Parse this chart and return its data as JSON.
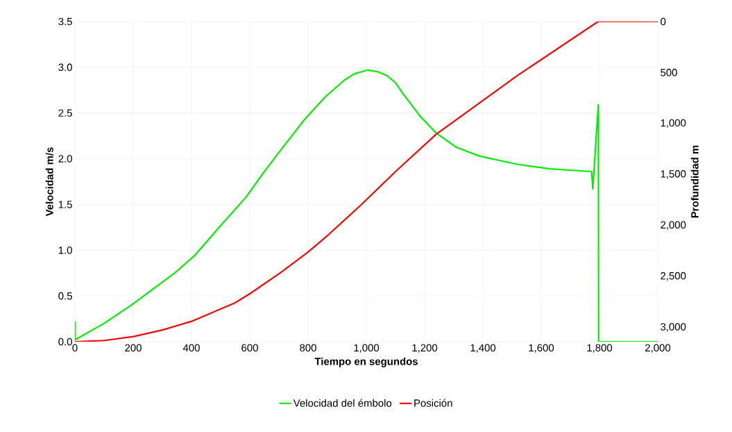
{
  "chart_data": {
    "type": "line",
    "xlabel": "Tiempo en segundos",
    "ylabel": "Velocidad m/s",
    "y2label": "Profundidad m",
    "xlim": [
      0,
      2000
    ],
    "ylim": [
      0,
      3.5
    ],
    "y2lim": [
      3140,
      0
    ],
    "xticks": [
      0,
      200,
      400,
      600,
      800,
      {
        "value": 1000,
        "label": "1,000"
      },
      {
        "value": 1200,
        "label": "1,200"
      },
      {
        "value": 1400,
        "label": "1,400"
      },
      {
        "value": 1600,
        "label": "1,600"
      },
      {
        "value": 1800,
        "label": "1,800"
      },
      {
        "value": 2000,
        "label": "2,000"
      }
    ],
    "yticks": [
      {
        "value": 0,
        "label": "0.0"
      },
      0.5,
      {
        "value": 1,
        "label": "1.0"
      },
      1.5,
      {
        "value": 2,
        "label": "2.0"
      },
      2.5,
      {
        "value": 3,
        "label": "3.0"
      },
      3.5
    ],
    "y2ticks": [
      0,
      500,
      {
        "value": 1000,
        "label": "1,000"
      },
      {
        "value": 1500,
        "label": "1,500"
      },
      {
        "value": 2000,
        "label": "2,000"
      },
      {
        "value": 2500,
        "label": "2,500"
      },
      {
        "value": 3000,
        "label": "3,000"
      }
    ],
    "grid": true,
    "legend": "bottom",
    "series": [
      {
        "name": "Velocidad del émbolo",
        "color": "#00ee00",
        "x": [
          0,
          0,
          100,
          193,
          342,
          410,
          500,
          587,
          643,
          700,
          788,
          860,
          925,
          960,
          1005,
          1040,
          1070,
          1100,
          1126,
          1183,
          1240,
          1306,
          1387,
          1517,
          1631,
          1773,
          1777,
          1796,
          1797,
          2000
        ],
        "values": [
          0.22,
          0.02,
          0.2,
          0.4,
          0.75,
          0.94,
          1.27,
          1.58,
          1.83,
          2.07,
          2.43,
          2.68,
          2.86,
          2.93,
          2.97,
          2.95,
          2.91,
          2.83,
          2.71,
          2.47,
          2.28,
          2.13,
          2.03,
          1.94,
          1.89,
          1.86,
          1.67,
          2.59,
          0,
          0
        ]
      },
      {
        "name": "Posición",
        "color": "#ff0000",
        "axis": "y2",
        "x": [
          0,
          100,
          200,
          300,
          400,
          548,
          600,
          707,
          800,
          869,
          981,
          1102,
          1240,
          1387,
          1517,
          1795,
          2000
        ],
        "values": [
          3140,
          3128,
          3090,
          3025,
          2940,
          2760,
          2670,
          2460,
          2260,
          2093,
          1800,
          1466,
          1104,
          801,
          532,
          0,
          0
        ]
      }
    ]
  }
}
